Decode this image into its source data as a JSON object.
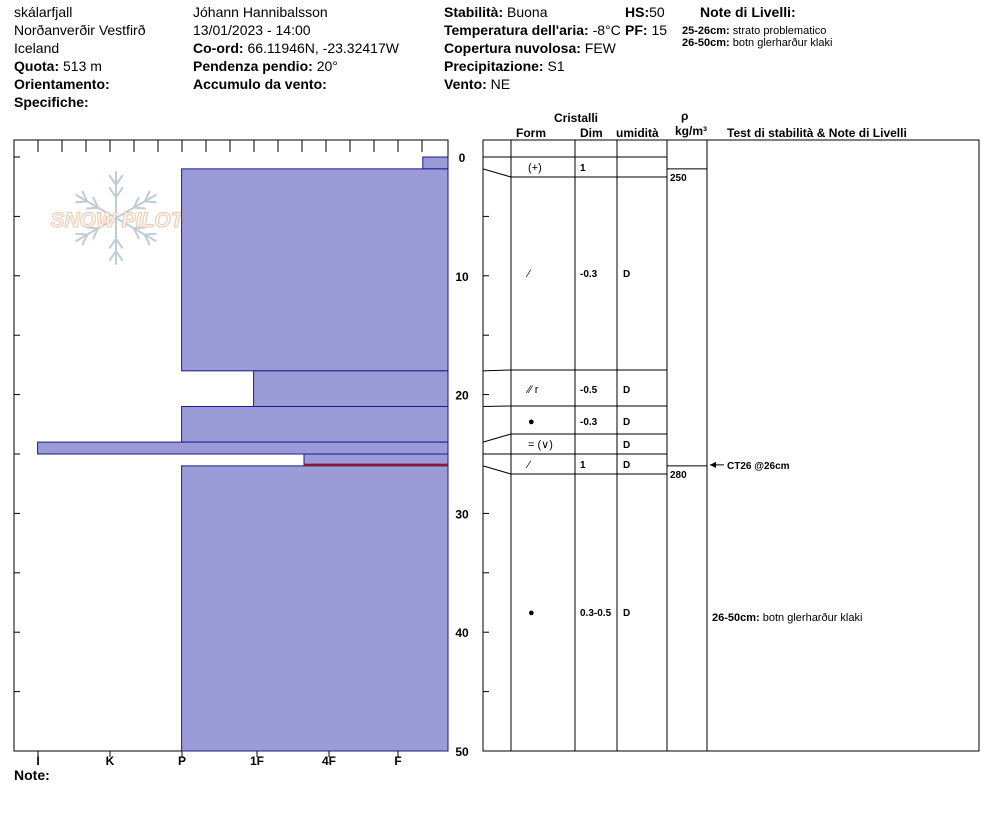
{
  "header": {
    "location": [
      "skálarfjall",
      "Norðanverðir Vestfirð",
      "Iceland"
    ],
    "elevation_label": "Quota:",
    "elevation_value": "513 m",
    "aspect_label": "Orientamento:",
    "aspect_value": "",
    "specifics_label": "Specifiche:",
    "specifics_value": "",
    "observer": "Jóhann Hannibalsson",
    "datetime": "13/01/2023 - 14:00",
    "coord_label": "Co-ord:",
    "coord_value": "66.11946N, -23.32417W",
    "slope_label": "Pendenza pendio:",
    "slope_value": "20°",
    "wind_loading_label": "Accumulo da vento:",
    "wind_loading_value": "",
    "stability_label": "Stabilità:",
    "stability_value": "Buona",
    "air_temp_label": "Temperatura dell'aria:",
    "air_temp_value": "-8°C",
    "sky_label": "Copertura nuvolosa:",
    "sky_value": "FEW",
    "precip_label": "Precipitazione:",
    "precip_value": "S1",
    "wind_label": "Vento:",
    "wind_value": "NE",
    "hs_label": "HS:",
    "hs_value": "50",
    "pf_label": "PF:",
    "pf_value": "15",
    "layer_notes_title": "Note di Livelli:",
    "layer_notes": [
      {
        "range": "25-26cm:",
        "text": "strato problematico"
      },
      {
        "range": "26-50cm:",
        "text": "botn glerharður klaki"
      }
    ]
  },
  "logo_text": "SNOW PILOT",
  "notes_label": "Note:",
  "columns": {
    "crystals_title": "Cristalli",
    "form": "Form",
    "size": "Dim",
    "moisture": "umidità",
    "rho": "ρ",
    "rho_unit": "kg/m³",
    "tests": "Test di stabilità & Note di Livelli"
  },
  "colors": {
    "hardness_fill": "#9b9bd7",
    "hardness_stroke": "#1a1a8c",
    "weak_layer": "#8b1a2b"
  },
  "hardness_ticks": [
    "I",
    "K",
    "P",
    "1F",
    "4F",
    "F"
  ],
  "depth_ticks": [
    "0",
    "10",
    "20",
    "30",
    "40",
    "50"
  ],
  "hs_cm": 50,
  "layers": [
    {
      "top": 0,
      "bottom": 1,
      "hardness": 0.35,
      "form": "",
      "size": "",
      "moisture": ""
    },
    {
      "top": 1,
      "bottom": 18,
      "hardness": 3.7,
      "form": "(+)",
      "size": "1",
      "moisture": ""
    },
    {
      "top": 18,
      "bottom": 21,
      "hardness": 2.7,
      "form": "/ ",
      "size": "-0.3",
      "moisture": "D"
    },
    {
      "top": 21,
      "bottom": 24,
      "hardness": 3.7,
      "form": "",
      "size": "",
      "moisture": ""
    },
    {
      "top": 24,
      "bottom": 25,
      "hardness": 5.7,
      "form": "",
      "size": "",
      "moisture": ""
    },
    {
      "top": 25,
      "bottom": 26,
      "hardness": 2.0,
      "form": "",
      "size": "",
      "moisture": ""
    },
    {
      "top": 26,
      "bottom": 50,
      "hardness": 3.7,
      "form": "",
      "size": "",
      "moisture": ""
    }
  ],
  "grain_rows": [
    {
      "form": "(+)",
      "size": "1",
      "moisture": ""
    },
    {
      "form": "⁄",
      "size": "-0.3",
      "moisture": "D"
    },
    {
      "form": "⁄⁄ r",
      "size": "-0.5",
      "moisture": "D"
    },
    {
      "form": "●",
      "size": "-0.3",
      "moisture": "D"
    },
    {
      "form": "= (∨)",
      "size": "",
      "moisture": "D"
    },
    {
      "form": "⁄",
      "size": "1",
      "moisture": "D"
    },
    {
      "form": "●",
      "size": "0.3-0.5",
      "moisture": "D"
    }
  ],
  "density": [
    {
      "depth": 1,
      "value": "250"
    },
    {
      "depth": 26,
      "value": "280"
    }
  ],
  "test_result": "CT26 @26cm",
  "test_depth": 26,
  "layer_comment": {
    "range": "26-50cm:",
    "text": "botn glerharður klaki"
  }
}
